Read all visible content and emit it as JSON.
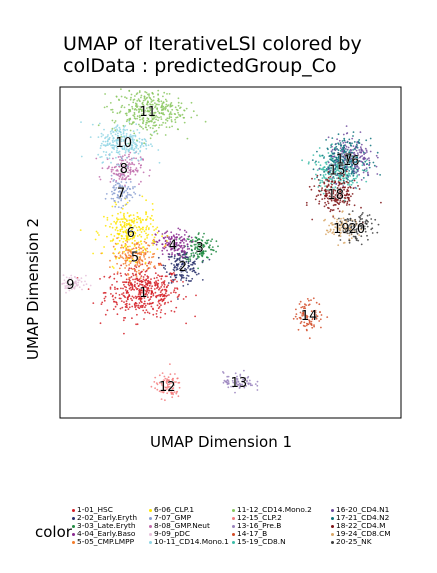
{
  "chart_data": {
    "type": "scatter",
    "title_line1": "UMAP of IterativeLSI  colored by",
    "title_line2": "colData :  predictedGroup_Co",
    "xlabel": "UMAP Dimension 1",
    "ylabel": "UMAP Dimension 2",
    "grid": false,
    "legend_position": "bottom",
    "legend_title": "color",
    "xlim": [
      -12,
      12
    ],
    "ylim": [
      -12,
      12
    ],
    "clusters": [
      {
        "label": "1",
        "name": "1-01_HSC",
        "color": "#D51F26",
        "x": -6.2,
        "y": -2.9,
        "sx": 1.35,
        "sy": 0.9,
        "n": 450
      },
      {
        "label": "2",
        "name": "2-02_Early.Eryth",
        "color": "#272E6A",
        "x": -3.4,
        "y": -1.0,
        "sx": 0.6,
        "sy": 0.6,
        "n": 160
      },
      {
        "label": "3",
        "name": "3-03_Late.Eryth",
        "color": "#208A42",
        "x": -2.2,
        "y": 0.4,
        "sx": 0.55,
        "sy": 0.55,
        "n": 130
      },
      {
        "label": "4",
        "name": "4-04_Early.Baso",
        "color": "#89288F",
        "x": -4.1,
        "y": 0.6,
        "sx": 0.6,
        "sy": 0.5,
        "n": 140
      },
      {
        "label": "5",
        "name": "5-05_CMP.LMPP",
        "color": "#F47D2B",
        "x": -6.8,
        "y": -0.3,
        "sx": 0.8,
        "sy": 0.6,
        "n": 170
      },
      {
        "label": "6",
        "name": "6-06_CLP.1",
        "color": "#FEE500",
        "x": -7.1,
        "y": 1.5,
        "sx": 0.95,
        "sy": 0.9,
        "n": 260
      },
      {
        "label": "7",
        "name": "7-07_GMP",
        "color": "#8A9FD1",
        "x": -7.8,
        "y": 4.4,
        "sx": 0.45,
        "sy": 0.5,
        "n": 90
      },
      {
        "label": "8",
        "name": "8-08_GMP.Neut",
        "color": "#C06CAB",
        "x": -7.6,
        "y": 6.2,
        "sx": 0.65,
        "sy": 0.55,
        "n": 140
      },
      {
        "label": "9",
        "name": "9-09_pDC",
        "color": "#E6C2DC",
        "x": -11.4,
        "y": -2.3,
        "sx": 0.55,
        "sy": 0.3,
        "n": 80
      },
      {
        "label": "10",
        "name": "10-11_CD14.Mono.1",
        "color": "#90D5E4",
        "x": -7.6,
        "y": 8.1,
        "sx": 0.9,
        "sy": 0.7,
        "n": 250
      },
      {
        "label": "11",
        "name": "11-12_CD14.Mono.2",
        "color": "#89C75F",
        "x": -5.9,
        "y": 10.4,
        "sx": 1.25,
        "sy": 0.8,
        "n": 350
      },
      {
        "label": "12",
        "name": "12-15_CLP.2",
        "color": "#F37B7D",
        "x": -4.5,
        "y": -9.8,
        "sx": 0.5,
        "sy": 0.45,
        "n": 90
      },
      {
        "label": "13",
        "name": "13-16_Pre.B",
        "color": "#9983BD",
        "x": 0.6,
        "y": -9.5,
        "sx": 0.55,
        "sy": 0.35,
        "n": 80
      },
      {
        "label": "14",
        "name": "14-17_B",
        "color": "#D24B27",
        "x": 5.6,
        "y": -4.6,
        "sx": 0.5,
        "sy": 0.55,
        "n": 90
      },
      {
        "label": "15",
        "name": "15-19_CD8.N",
        "color": "#3BBCA8",
        "x": 7.6,
        "y": 6.1,
        "sx": 0.85,
        "sy": 0.75,
        "n": 230
      },
      {
        "label": "16",
        "name": "16-20_CD4.N1",
        "color": "#6E4B9E",
        "x": 8.6,
        "y": 6.8,
        "sx": 0.8,
        "sy": 0.75,
        "n": 230
      },
      {
        "label": "17",
        "name": "17-21_CD4.N2",
        "color": "#0C727C",
        "x": 8.1,
        "y": 6.9,
        "sx": 0.8,
        "sy": 0.7,
        "n": 230
      },
      {
        "label": "18",
        "name": "18-22_CD4.M",
        "color": "#7E1416",
        "x": 7.5,
        "y": 4.3,
        "sx": 0.75,
        "sy": 0.7,
        "n": 200
      },
      {
        "label": "19",
        "name": "19-24_CD8.CM",
        "color": "#D8A767",
        "x": 7.9,
        "y": 1.8,
        "sx": 0.55,
        "sy": 0.45,
        "n": 110
      },
      {
        "label": "20",
        "name": "20-25_NK",
        "color": "#3D3D3D",
        "x": 9.0,
        "y": 1.8,
        "sx": 0.6,
        "sy": 0.5,
        "n": 110
      }
    ]
  },
  "legend": {
    "title": "color",
    "col1": [
      "1-01_HSC",
      "2-02_Early.Eryth",
      "3-03_Late.Eryth",
      "4-04_Early.Baso",
      "5-05_CMP.LMPP"
    ],
    "col2": [
      "6-06_CLP.1",
      "7-07_GMP",
      "8-08_GMP.Neut",
      "9-09_pDC",
      "10-11_CD14.Mono.1"
    ],
    "col3": [
      "11-12_CD14.Mono.2",
      "12-15_CLP.2",
      "13-16_Pre.B",
      "14-17_B",
      "15-19_CD8.N"
    ],
    "col4": [
      "16-20_CD4.N1",
      "17-21_CD4.N2",
      "18-22_CD4.M",
      "19-24_CD8.CM",
      "20-25_NK"
    ]
  }
}
